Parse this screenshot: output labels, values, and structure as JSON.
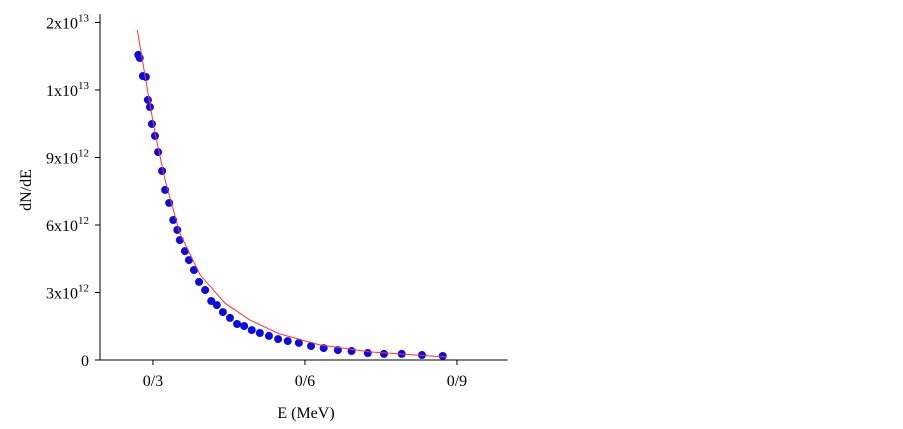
{
  "chart_data": {
    "type": "scatter",
    "xlabel": "E (MeV)",
    "ylabel": "dN/dE",
    "xlim": [
      0.2,
      1.0
    ],
    "xticks": [
      {
        "value": 0.3,
        "label": "0/3"
      },
      {
        "value": 0.6,
        "label": "0/6"
      },
      {
        "value": 0.9,
        "label": "0/9"
      }
    ],
    "ylim": [
      0,
      15000000000000
    ],
    "yticks": [
      0,
      {
        "value": 3000000000000,
        "label": "3x10^12"
      },
      {
        "value": 6000000000000,
        "label": "6x10^12"
      },
      {
        "value": 9000000000000,
        "label": "9x10^12"
      },
      {
        "value": 12000000000000,
        "label": "1x10^13"
      },
      {
        "value": 15000000000000,
        "label": "2x10^13"
      }
    ],
    "series": [
      {
        "type": "scatter",
        "color": "#0a0ae6",
        "x": [
          0.271,
          0.274,
          0.28,
          0.286,
          0.29,
          0.294,
          0.298,
          0.304,
          0.31,
          0.318,
          0.324,
          0.332,
          0.34,
          0.348,
          0.353,
          0.363,
          0.371,
          0.381,
          0.391,
          0.403,
          0.415,
          0.426,
          0.438,
          0.452,
          0.466,
          0.48,
          0.495,
          0.511,
          0.529,
          0.547,
          0.566,
          0.588,
          0.612,
          0.637,
          0.665,
          0.692,
          0.724,
          0.756,
          0.791,
          0.831,
          0.872
        ],
        "values": [
          13560000000000,
          13420000000000,
          12620000000000,
          12580000000000,
          11560000000000,
          11240000000000,
          10490000000000,
          9960000000000,
          9240000000000,
          8400000000000,
          7560000000000,
          6980000000000,
          6220000000000,
          5780000000000,
          5330000000000,
          4840000000000,
          4440000000000,
          4000000000000,
          3470000000000,
          3110000000000,
          2620000000000,
          2440000000000,
          2130000000000,
          1870000000000,
          1600000000000,
          1510000000000,
          1330000000000,
          1200000000000,
          1070000000000,
          930000000000,
          840000000000,
          760000000000,
          620000000000,
          530000000000,
          440000000000,
          400000000000,
          310000000000,
          270000000000,
          270000000000,
          220000000000,
          180000000000
        ]
      },
      {
        "type": "line",
        "color": "#ff3333",
        "x": [
          0.269,
          0.284,
          0.304,
          0.324,
          0.353,
          0.393,
          0.442,
          0.491,
          0.55,
          0.629,
          0.728,
          0.88
        ],
        "values": [
          14670000000000,
          12670000000000,
          10090000000000,
          8000000000000,
          5640000000000,
          3780000000000,
          2530000000000,
          1780000000000,
          1160000000000,
          670000000000,
          360000000000,
          130000000000
        ]
      }
    ]
  }
}
